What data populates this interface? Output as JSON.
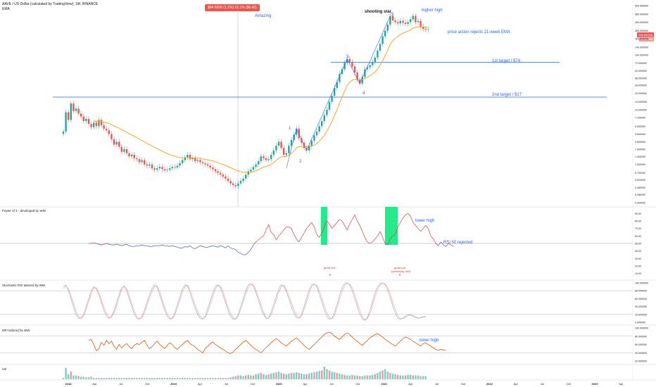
{
  "header": {
    "symbol_line": "AAVE / US Dollar (calculated by TradingView), 1W, BINANCE",
    "indicator": "EMA",
    "price_pill": "$94.6058 (1.1%) 15.1% ($0.40)",
    "last_price": "294.6/0348",
    "last_price_sub": "32.6k 73k"
  },
  "colors": {
    "up": "#26a69a",
    "down": "#ef5350",
    "ema": "#f5a623",
    "guide": "#2962ff",
    "annotation": "#2962ff",
    "rsi_red": "#e53935",
    "rsi_blue": "#3f51b5",
    "mfi": "#e65100",
    "highlight": "#00e676"
  },
  "annotations": {
    "amazing": "Amazing",
    "shooting_star": "shooting star",
    "higher_high": "higher high",
    "rejects": "price action rejects 21-week EMA",
    "target1": "1st target  /  $74",
    "target2": "2nd target  /  $17",
    "wave1": "1",
    "wave2": "2",
    "wave3": "3",
    "wave4": "4",
    "wave5": "5",
    "lower_high_rsi": "lower high",
    "rsi_rejected": "RSI 50 rejected",
    "great_sell": "great sell",
    "great_sell2_a": "great sell",
    "great_sell2_b": "(yesterday sell)",
    "lower_high_mfi": "lower high"
  },
  "panels": {
    "rsi_title": "Power of 3 - developed by WW",
    "stoch_title": "Stochastic RSI tailored by WW",
    "mfi_title": "MFI tailored by WW",
    "vol_title": "Vol"
  },
  "chart_data": [
    {
      "type": "candlestick",
      "title": "AAVE / US Dollar, 1W",
      "y_scale": "log",
      "y_ticks": [
        "800.000000",
        "560.000000",
        "400.000000",
        "280.000000",
        "200.000000",
        "140.000000",
        "100.000000",
        "72.000000",
        "52.000000",
        "38.000000",
        "28.000000",
        "20.000000",
        "14.000000",
        "10.000000",
        "7.200000",
        "5.000000",
        "3.600000",
        "2.600000",
        "1.900000",
        "1.400000",
        "1.000000",
        "0.700000",
        "0.520000",
        "0.380000",
        "0.280000",
        "0.200000"
      ],
      "y_tick_values": [
        800,
        560,
        400,
        280,
        200,
        140,
        100,
        72,
        52,
        38,
        28,
        20,
        14,
        10,
        7.2,
        5,
        3.6,
        2.6,
        1.9,
        1.4,
        1,
        0.7,
        0.52,
        0.38,
        0.28,
        0.2
      ],
      "x_ticks": [
        "2018",
        "Apr",
        "Jul",
        "Oct",
        "2019",
        "Apr",
        "Jul",
        "Oct",
        "2020",
        "Apr",
        "Jul",
        "Oct",
        "2021",
        "Apr",
        "Jul",
        "Oct",
        "2022",
        "Apr",
        "Jul",
        "Oct",
        "2023",
        "Apr"
      ],
      "closes": [
        4.0,
        9.0,
        6.5,
        13.0,
        9.5,
        10.5,
        8.5,
        7.5,
        6.2,
        6.8,
        5.5,
        4.8,
        5.8,
        5.0,
        6.5,
        5.2,
        4.5,
        4.2,
        3.6,
        2.9,
        2.3,
        2.6,
        2.1,
        1.7,
        1.9,
        1.6,
        1.4,
        1.5,
        1.3,
        1.25,
        1.1,
        1.2,
        1.0,
        0.95,
        1.0,
        0.85,
        0.8,
        0.85,
        0.9,
        0.82,
        0.78,
        0.8,
        0.85,
        0.9,
        0.88,
        0.95,
        1.05,
        1.2,
        1.35,
        1.5,
        1.25,
        1.3,
        1.15,
        1.2,
        1.1,
        1.05,
        1.0,
        0.95,
        0.88,
        0.82,
        0.75,
        0.7,
        0.65,
        0.6,
        0.55,
        0.5,
        0.45,
        0.42,
        0.4,
        0.45,
        0.5,
        0.55,
        0.65,
        0.75,
        0.8,
        0.9,
        1.0,
        1.15,
        1.4,
        1.3,
        1.2,
        1.25,
        1.5,
        1.8,
        2.2,
        2.6,
        2.0,
        1.5,
        1.6,
        2.2,
        2.8,
        3.5,
        4.5,
        3.0,
        2.5,
        2.0,
        1.8,
        2.2,
        2.7,
        3.4,
        4.0,
        5.0,
        6.2,
        8.0,
        10.0,
        14.0,
        18.0,
        25.0,
        32.0,
        45.0,
        55.0,
        72.0,
        85.0,
        75.0,
        62.0,
        48.0,
        35.0,
        30.0,
        40.0,
        55.0,
        60.0,
        65.0,
        75.0,
        90.0,
        120.0,
        160.0,
        220.0,
        280.0,
        360.0,
        520.0,
        430.0,
        400.0,
        380.0,
        420.0,
        390.0,
        370.0,
        400.0,
        450.0,
        520.0,
        400.0,
        420.0,
        330.0,
        300.0,
        290.0,
        294.6
      ],
      "ema_period": 21,
      "levels": [
        {
          "label": "1st target  /  $74",
          "value": 74
        },
        {
          "label": "2nd target  /  $17",
          "value": 17
        }
      ]
    },
    {
      "type": "line",
      "title": "Power of 3 - developed by WW",
      "y_ticks": [
        "90.00",
        "80.00",
        "70.00",
        "60.00",
        "50.00",
        "40.00",
        "30.00",
        "20.00",
        "10.00"
      ],
      "y_tick_values": [
        90,
        80,
        70,
        60,
        50,
        40,
        30,
        20,
        10
      ],
      "reference": 50,
      "series": [
        {
          "values": [
            50,
            50,
            51,
            50,
            49,
            48,
            49,
            50,
            49,
            48,
            48,
            49,
            48,
            47,
            48,
            49,
            47,
            46,
            46,
            47,
            47,
            48,
            47,
            47,
            46,
            46,
            47,
            47,
            47,
            48,
            47,
            47,
            46,
            47,
            46,
            45,
            44,
            44,
            46,
            45,
            47,
            44,
            43,
            45,
            47,
            46,
            45,
            45,
            46,
            47,
            46,
            45,
            47,
            46,
            44,
            47,
            44,
            43,
            42,
            38,
            37,
            35,
            35,
            38,
            42,
            48,
            52,
            55,
            58,
            60,
            68,
            75,
            65,
            62,
            55,
            60,
            64,
            68,
            72,
            72,
            70,
            62,
            56,
            52,
            58,
            64,
            70,
            74,
            78,
            72,
            62,
            58,
            64,
            72,
            80,
            76,
            70,
            74,
            78,
            82,
            80,
            74,
            68,
            76,
            82,
            88,
            80,
            74,
            66,
            58,
            52,
            50,
            52,
            56,
            60,
            66,
            58,
            50,
            48,
            56,
            60,
            62,
            72,
            78,
            84,
            88,
            90,
            86,
            78,
            74,
            70,
            66,
            70,
            74,
            70,
            60,
            56,
            50,
            47,
            52,
            48,
            46,
            50,
            48,
            46
          ]
        }
      ]
    },
    {
      "type": "line",
      "title": "Stochastic RSI tailored by WW",
      "y_ticks": [
        "100.000000",
        "80.000000",
        "60.000000",
        "40.000000",
        "20.000000",
        "0.000000"
      ],
      "y_tick_values": [
        100,
        80,
        60,
        40,
        20,
        0
      ],
      "series": [
        {
          "values": [
            90,
            95,
            80,
            60,
            40,
            20,
            10,
            10,
            20,
            40,
            60,
            80,
            90,
            85,
            70,
            50,
            30,
            15,
            10,
            15,
            30,
            50,
            70,
            88,
            92,
            80,
            60,
            40,
            20,
            10,
            8,
            15,
            30,
            50,
            70,
            85,
            95,
            90,
            70,
            50,
            30,
            15,
            8,
            10,
            25,
            45,
            65,
            85,
            95,
            92,
            75,
            55,
            35,
            20,
            10,
            8,
            15,
            35,
            55,
            75,
            90,
            95,
            88,
            70,
            50,
            30,
            15,
            8,
            8,
            20,
            40,
            60,
            80,
            95,
            98,
            92,
            75,
            55,
            35,
            20,
            10,
            10,
            25,
            45,
            65,
            85,
            95,
            92,
            78,
            60,
            40,
            22,
            12,
            10,
            20,
            40,
            62,
            82,
            95,
            98,
            90,
            72,
            52,
            32,
            15,
            8,
            10,
            25,
            45,
            68,
            88,
            98,
            100,
            95,
            80,
            60,
            40,
            20,
            8,
            5,
            12,
            30,
            52,
            74,
            90,
            98,
            100,
            95,
            82,
            62,
            42,
            22,
            10,
            8,
            10,
            15,
            20,
            18,
            15,
            12,
            10,
            12,
            14,
            15
          ]
        },
        {
          "values": [
            85,
            92,
            85,
            68,
            48,
            28,
            14,
            10,
            15,
            32,
            52,
            72,
            86,
            88,
            76,
            58,
            38,
            22,
            12,
            12,
            24,
            42,
            62,
            82,
            90,
            86,
            68,
            48,
            28,
            14,
            9,
            11,
            24,
            42,
            62,
            78,
            90,
            92,
            78,
            58,
            38,
            22,
            11,
            9,
            18,
            36,
            56,
            76,
            90,
            94,
            82,
            64,
            44,
            28,
            15,
            9,
            12,
            26,
            46,
            66,
            84,
            93,
            92,
            78,
            58,
            38,
            22,
            12,
            8,
            14,
            32,
            52,
            72,
            88,
            96,
            95,
            82,
            64,
            44,
            26,
            14,
            10,
            18,
            36,
            56,
            76,
            90,
            94,
            84,
            68,
            50,
            32,
            18,
            11,
            15,
            32,
            52,
            74,
            90,
            96,
            94,
            80,
            62,
            42,
            24,
            12,
            9,
            18,
            36,
            58,
            78,
            93,
            99,
            98,
            88,
            70,
            50,
            30,
            14,
            7,
            9,
            22,
            42,
            64,
            82,
            94,
            99,
            98,
            88,
            72,
            52,
            32,
            16,
            9,
            9,
            12,
            17,
            19,
            17,
            14,
            11,
            11,
            13,
            14
          ]
        }
      ]
    },
    {
      "type": "line",
      "title": "MFI tailored by WW",
      "y_ticks": [
        "100.000000",
        "80.000000",
        "60.000000",
        "40.000000",
        "20.000000"
      ],
      "y_tick_values": [
        100,
        80,
        60,
        40,
        20
      ],
      "series": [
        {
          "values": [
            70,
            72,
            60,
            45,
            50,
            65,
            58,
            70,
            62,
            68,
            55,
            48,
            60,
            52,
            58,
            62,
            55,
            50,
            58,
            62,
            60,
            65,
            70,
            58,
            50,
            55,
            62,
            68,
            60,
            55,
            50,
            58,
            64,
            60,
            52,
            48,
            55,
            60,
            66,
            70,
            62,
            58,
            54,
            48,
            44,
            40,
            50,
            56,
            62,
            66,
            60,
            56,
            52,
            48,
            44,
            40,
            38,
            42,
            48,
            54,
            60,
            66,
            70,
            64,
            58,
            52,
            48,
            44,
            40,
            46,
            52,
            58,
            64,
            70,
            74,
            70,
            64,
            60,
            56,
            62,
            68,
            72,
            76,
            70,
            64,
            58,
            52,
            48,
            54,
            60,
            66,
            72,
            78,
            84,
            88,
            90,
            86,
            80,
            76,
            72,
            78,
            84,
            88,
            84,
            78,
            72,
            68,
            62,
            58,
            64,
            70,
            76,
            80,
            84,
            86,
            82,
            78,
            72,
            68,
            64,
            60,
            56,
            62,
            68,
            74,
            78,
            76,
            72,
            68,
            64,
            60,
            56,
            62,
            64,
            60,
            56,
            52,
            48,
            46,
            48,
            47,
            46
          ]
        }
      ]
    },
    {
      "type": "bar",
      "title": "Vol",
      "values": [
        0.1,
        0.9,
        0.4,
        0.6,
        0.3,
        0.3,
        0.25,
        0.2,
        0.2,
        0.15,
        0.15,
        0.2,
        0.1,
        0.1,
        0.1,
        0.1,
        0.1,
        0.1,
        0.1,
        0.1,
        0.1,
        0.1,
        0.1,
        0.1,
        0.1,
        0.1,
        0.1,
        0.1,
        0.1,
        0.1,
        0.1,
        0.1,
        0.1,
        0.1,
        0.1,
        0.1,
        0.1,
        0.1,
        0.1,
        0.1,
        0.1,
        0.1,
        0.1,
        0.1,
        0.1,
        0.1,
        0.1,
        0.1,
        0.1,
        0.1,
        0.1,
        0.1,
        0.1,
        0.1,
        0.1,
        0.1,
        0.1,
        0.1,
        0.1,
        0.1,
        0.1,
        0.1,
        0.1,
        0.1,
        0.1,
        0.1,
        0.15,
        0.2,
        0.25,
        0.3,
        0.3,
        0.25,
        0.3,
        0.35,
        0.3,
        0.3,
        0.4,
        0.45,
        0.5,
        0.4,
        0.35,
        0.4,
        0.45,
        0.5,
        0.55,
        0.6,
        0.5,
        0.45,
        0.4,
        0.45,
        0.5,
        0.5,
        0.55,
        0.5,
        0.45,
        0.4,
        0.4,
        0.45,
        0.5,
        0.55,
        0.6,
        0.65,
        0.7,
        1.0,
        0.8,
        0.7,
        0.6,
        0.55,
        0.5,
        0.45,
        0.4,
        0.35,
        0.3,
        0.3,
        0.35,
        0.3,
        0.3,
        0.25,
        0.25,
        0.3,
        0.3,
        0.3,
        0.35,
        0.4,
        0.5,
        0.6,
        0.7,
        0.8,
        0.6,
        0.5,
        0.45,
        0.4,
        0.35,
        0.3,
        0.3,
        0.3,
        0.35,
        0.35,
        0.3,
        0.3,
        0.3,
        0.25,
        0.25,
        0.25
      ]
    }
  ]
}
